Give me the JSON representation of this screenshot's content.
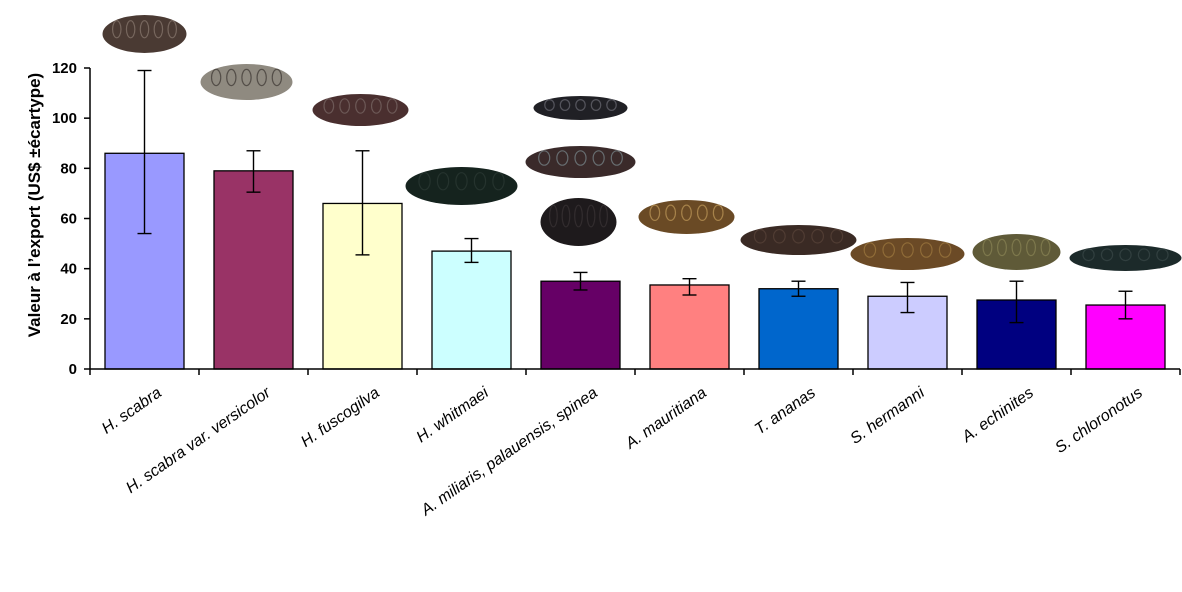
{
  "chart_data": {
    "type": "bar",
    "title": "",
    "xlabel": "",
    "ylabel": "Valeur à l’export  (US$ ±écartype)",
    "ylim": [
      0,
      120
    ],
    "yticks": [
      0,
      20,
      40,
      60,
      80,
      100,
      120
    ],
    "grid": false,
    "legend": "none",
    "categories": [
      "H. scabra",
      "H. scabra var. versicolor",
      "H. fuscogilva",
      "H. whitmaei",
      "A. miliaris, palauensis, spinea",
      "A. mauritiana",
      "T. ananas",
      "S. hermanni",
      "A. echinites",
      "S. chloronotus"
    ],
    "values": [
      86,
      79,
      66,
      47,
      35,
      33.5,
      32,
      29,
      27.5,
      25.5
    ],
    "error_low": [
      54,
      70.5,
      45.5,
      42.5,
      31.5,
      29.5,
      29,
      22.5,
      18.5,
      20
    ],
    "error_high": [
      119,
      87,
      87,
      52,
      38.5,
      36,
      35,
      34.5,
      35,
      31
    ],
    "colors": [
      "#9999ff",
      "#993366",
      "#ffffcc",
      "#ccffff",
      "#660066",
      "#ff8080",
      "#0066cc",
      "#ccccff",
      "#000080",
      "#ff00ff"
    ],
    "illustrations": [
      "sea-cucumber-photo",
      "sea-cucumber-photo",
      "sea-cucumber-photo",
      "sea-cucumber-photo",
      "sea-cucumber-photo",
      "sea-cucumber-photo",
      "sea-cucumber-photo",
      "sea-cucumber-photo",
      "sea-cucumber-photo",
      "sea-cucumber-photo"
    ]
  }
}
